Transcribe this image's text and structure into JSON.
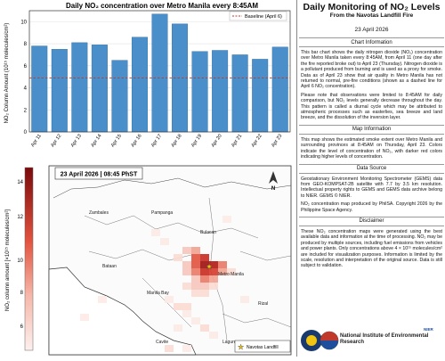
{
  "chart_data": {
    "type": "bar",
    "title": "Daily NO₂ concentration over Metro Manila every 8:45AM",
    "ylabel": "NO₂ Column Amount (10¹⁵ molecules/cm²)",
    "xlabel": "",
    "categories": [
      "Apr 11",
      "Apr 12",
      "Apr 13",
      "Apr 14",
      "Apr 15",
      "Apr 16",
      "Apr 17",
      "Apr 18",
      "Apr 19",
      "Apr 20",
      "Apr 21",
      "Apr 22",
      "Apr 23"
    ],
    "values": [
      7.8,
      7.5,
      8.1,
      7.9,
      6.5,
      8.6,
      10.7,
      9.8,
      7.3,
      7.4,
      7.0,
      6.6,
      7.7
    ],
    "baseline": {
      "label": "Baseline (April 6)",
      "value": 4.9
    },
    "ylim": [
      0,
      11
    ],
    "yticks": [
      0,
      2,
      4,
      6,
      8,
      10
    ],
    "bar_color": "#4a8fc9",
    "baseline_color": "#c0392b",
    "grid": true,
    "legend_position": "top-right"
  },
  "map": {
    "title": "23 April 2026 | 08:45 PhST",
    "colorbar_label": "NO₂ column amount [×10¹⁵ molecules/cm²]",
    "colorbar_ticks": [
      "14",
      "12",
      "10",
      "8",
      "6"
    ],
    "places": {
      "zambales": "Zambales",
      "pampanga": "Pampanga",
      "bulacan": "Bulacan",
      "bataan": "Bataan",
      "metro_manila": "Metro Manila",
      "manila_bay": "Manila Bay",
      "rizal": "Rizal",
      "cavite": "Cavite",
      "laguna": "Laguna"
    },
    "legend_label": "Navotas Landfill"
  },
  "side": {
    "title": "Daily Monitoring of NO₂ Levels",
    "subtitle": "From the Navotas Landfill Fire",
    "date": "23 April 2026",
    "sections": [
      {
        "heading": "Chart Information",
        "paragraphs": [
          "This bar chart shows the daily nitrogen dioxide (NO₂) concentration over Metro Manila taken every 8:45AM, from April 11 (one day after the fire reported broke out) to April 23 (Thursday). Nitrogen dioxide is a pollutant produced from burning and is used as a proxy for smoke. Data as of April 23 show that air quality in Metro Manila has not returned to normal, pre-fire conditions (shown as a dashed line for April 6 NO₂ concentration).",
          "Please note that observations were limited to 8:45AM for daily comparison, but NO₂ levels generally decrease throughout the day. This pattern is called a diurnal cycle which may be attributed to atmospheric processes such as easterlies, sea breeze and land breeze, and the dissolution of the inversion layer."
        ]
      },
      {
        "heading": "Map Information",
        "paragraphs": [
          "This map shows the estimated smoke extent over Metro Manila and surrounding provinces at 8:45AM on Thursday, April 23. Colors indicate the level of concentration of NO₂, with darker red colors indicating higher levels of concentration."
        ]
      },
      {
        "heading": "Data Source",
        "paragraphs": [
          "Geostationary Environment Monitoring Spectrometer (GEMS) data from GEO-KOMPSAT-2B satellite with 7.7 by 3.5 km resolution. Intellectual property rights to GEMS and GEMS data archive belong to NIER. GEMS © NIER.",
          "NO₂ concentration map produced by PhilSA. Copyright 2026 by the Philippine Space Agency."
        ]
      },
      {
        "heading": "Disclaimer",
        "paragraphs": [
          "These NO₂ concentration maps were generated using the best available data and information at the time of processing. NO₂ may be produced by multiple sources, including fuel emissions from vehicles and power plants. Only concentrations above 4 × 10¹⁵ molecules/cm² are included for visualization purposes. Information is limited by the scale, resolution and interpretation of the original source. Data is still subject to validation."
        ]
      }
    ],
    "logo_text": "National Institute of Environmental Research",
    "logo_small": "NIER"
  }
}
